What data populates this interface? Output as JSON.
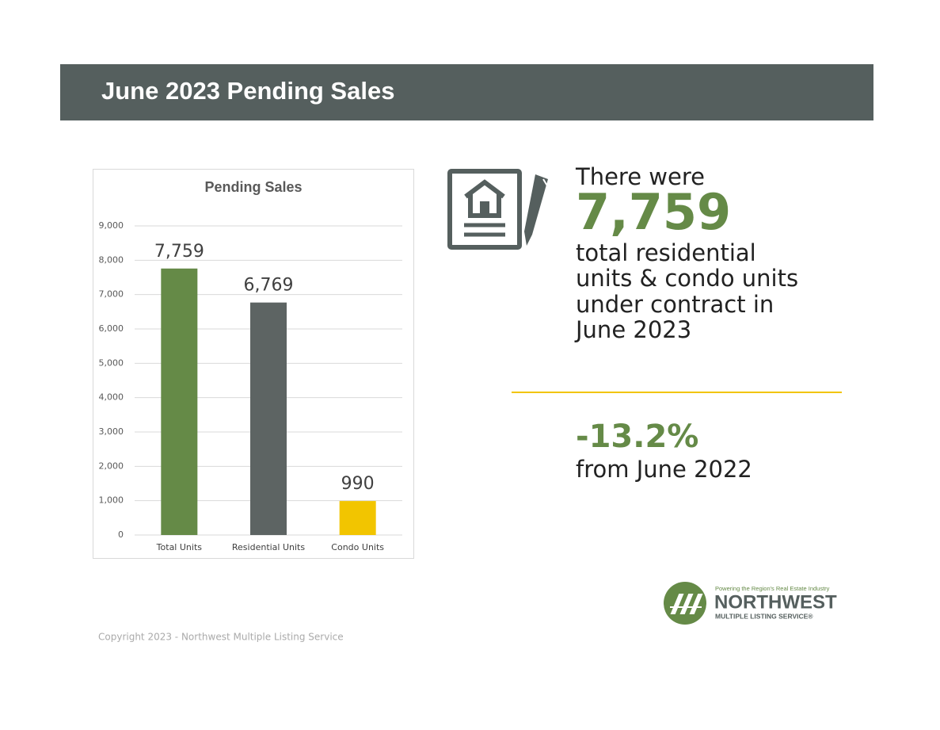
{
  "header": {
    "title": "June 2023 Pending Sales"
  },
  "chart_data": {
    "type": "bar",
    "title": "Pending Sales",
    "categories": [
      "Total Units",
      "Residential Units",
      "Condo Units"
    ],
    "values": [
      7759,
      6769,
      990
    ],
    "value_labels": [
      "7,759",
      "6,769",
      "990"
    ],
    "colors": [
      "#658a47",
      "#5d6463",
      "#f2c500"
    ],
    "ylim": [
      0,
      9000
    ],
    "yticks": [
      0,
      {
        "value": 1000,
        "label": "1,000"
      },
      {
        "value": 2000,
        "label": "2,000"
      },
      {
        "value": 3000,
        "label": "3,000"
      },
      {
        "value": 4000,
        "label": "4,000"
      },
      {
        "value": 5000,
        "label": "5,000"
      },
      {
        "value": 6000,
        "label": "6,000"
      },
      {
        "value": 7000,
        "label": "7,000"
      },
      {
        "value": 8000,
        "label": "8,000"
      },
      {
        "value": 9000,
        "label": "9,000"
      }
    ],
    "grid": true
  },
  "stats": {
    "intro": "There were",
    "total": "7,759",
    "description": [
      "total residential",
      "units & condo units",
      "under contract in",
      "June 2023"
    ],
    "change": "-13.2%",
    "change_note": "from June 2022"
  },
  "logo": {
    "tagline": "Powering the Region's Real Estate Industry",
    "name": "NORTHWEST",
    "subname": "MULTIPLE LISTING SERVICE®"
  },
  "footer": {
    "copyright": "Copyright 2023 - Northwest Multiple Listing Service"
  }
}
